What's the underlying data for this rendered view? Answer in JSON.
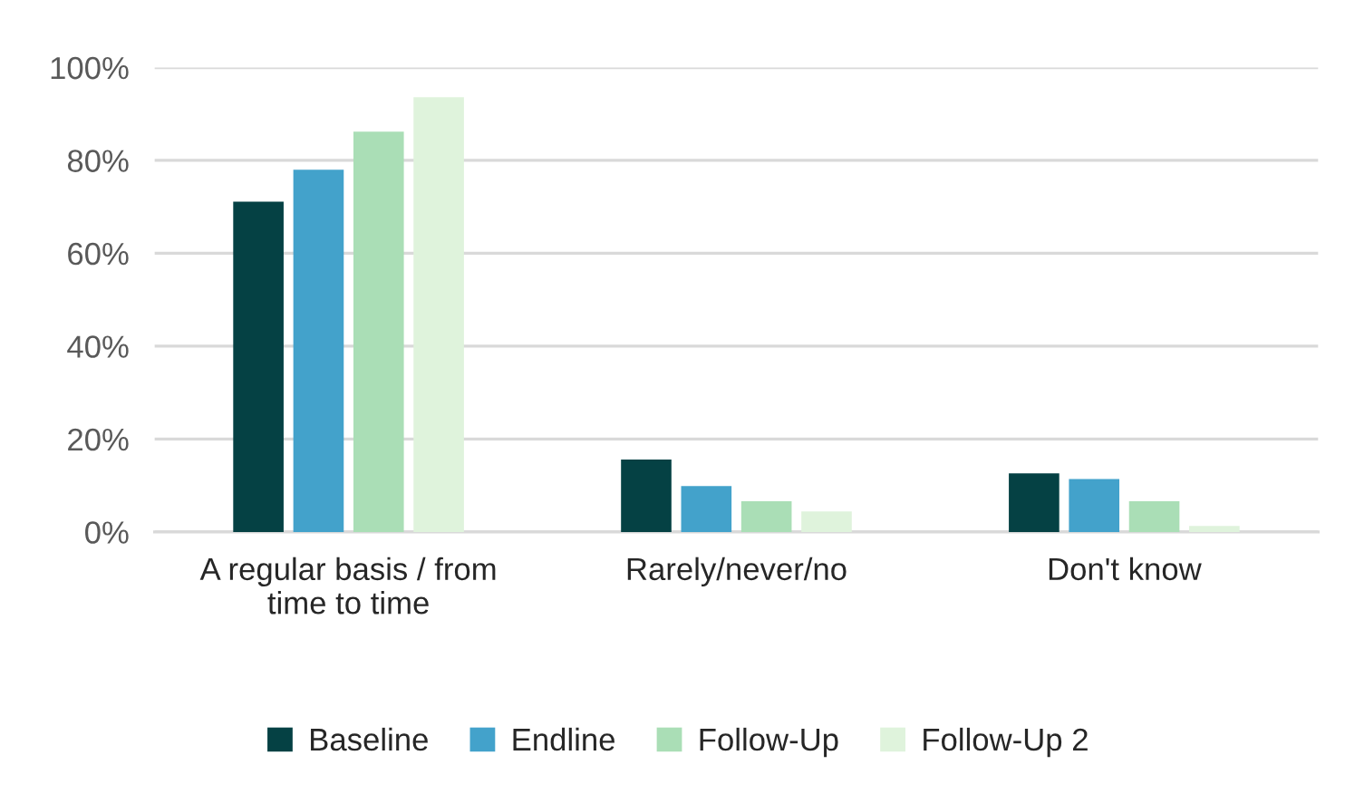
{
  "chart_data": {
    "type": "bar",
    "categories": [
      "A regular basis / from\ntime to time",
      "Rarely/never/no",
      "Don't know"
    ],
    "series": [
      {
        "name": "Baseline",
        "color": "#054144",
        "values": [
          71.1,
          15.6,
          12.6
        ]
      },
      {
        "name": "Endline",
        "color": "#43a2cb",
        "values": [
          78.0,
          9.9,
          11.4
        ]
      },
      {
        "name": "Follow-Up",
        "color": "#aadeb6",
        "values": [
          86.2,
          6.6,
          6.6
        ]
      },
      {
        "name": "Follow-Up 2",
        "color": "#dff3dc",
        "values": [
          93.6,
          4.4,
          1.3
        ]
      }
    ],
    "ylim": [
      0,
      100
    ],
    "yticks": [
      {
        "value": 0,
        "label": "0%"
      },
      {
        "value": 20,
        "label": "20%"
      },
      {
        "value": 40,
        "label": "40%"
      },
      {
        "value": 60,
        "label": "60%"
      },
      {
        "value": 80,
        "label": "80%"
      },
      {
        "value": 100,
        "label": "100%"
      }
    ],
    "grid": "y",
    "legend": "bottom"
  }
}
